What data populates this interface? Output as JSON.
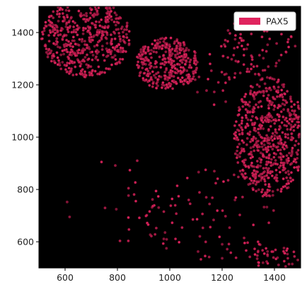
{
  "chart_data": {
    "type": "scatter",
    "title": "",
    "xlabel": "",
    "ylabel": "",
    "xlim": [
      500,
      1500
    ],
    "ylim": [
      500,
      1500
    ],
    "x_ticks": [
      600,
      800,
      1000,
      1200,
      1400
    ],
    "y_ticks": [
      600,
      800,
      1000,
      1200,
      1400
    ],
    "x_tick_labels": [
      "600",
      "800",
      "1000",
      "1200",
      "1400"
    ],
    "y_tick_labels": [
      "600",
      "800",
      "1000",
      "1200",
      "1400"
    ],
    "background_color": "#000000",
    "grid": false,
    "legend": {
      "position": "top-right"
    },
    "series": [
      {
        "name": "PAX5",
        "color": "#e0245e",
        "marker": "circle",
        "regions": [
          {
            "shape": "ellipse",
            "cx": 680,
            "cy": 1380,
            "rx": 170,
            "ry": 150,
            "count": 520
          },
          {
            "shape": "ellipse",
            "cx": 990,
            "cy": 1280,
            "rx": 120,
            "ry": 100,
            "count": 340
          },
          {
            "shape": "ellipse",
            "cx": 1380,
            "cy": 1000,
            "rx": 135,
            "ry": 230,
            "count": 620
          },
          {
            "shape": "ellipse",
            "cx": 1340,
            "cy": 1350,
            "rx": 140,
            "ry": 120,
            "count": 70
          },
          {
            "shape": "ellipse",
            "cx": 1200,
            "cy": 1250,
            "rx": 130,
            "ry": 130,
            "count": 40
          },
          {
            "shape": "ellipse",
            "cx": 1150,
            "cy": 700,
            "rx": 250,
            "ry": 180,
            "count": 90
          },
          {
            "shape": "ellipse",
            "cx": 1400,
            "cy": 540,
            "rx": 100,
            "ry": 40,
            "count": 40
          },
          {
            "shape": "ellipse",
            "cx": 800,
            "cy": 760,
            "rx": 250,
            "ry": 160,
            "count": 20
          }
        ]
      }
    ]
  }
}
